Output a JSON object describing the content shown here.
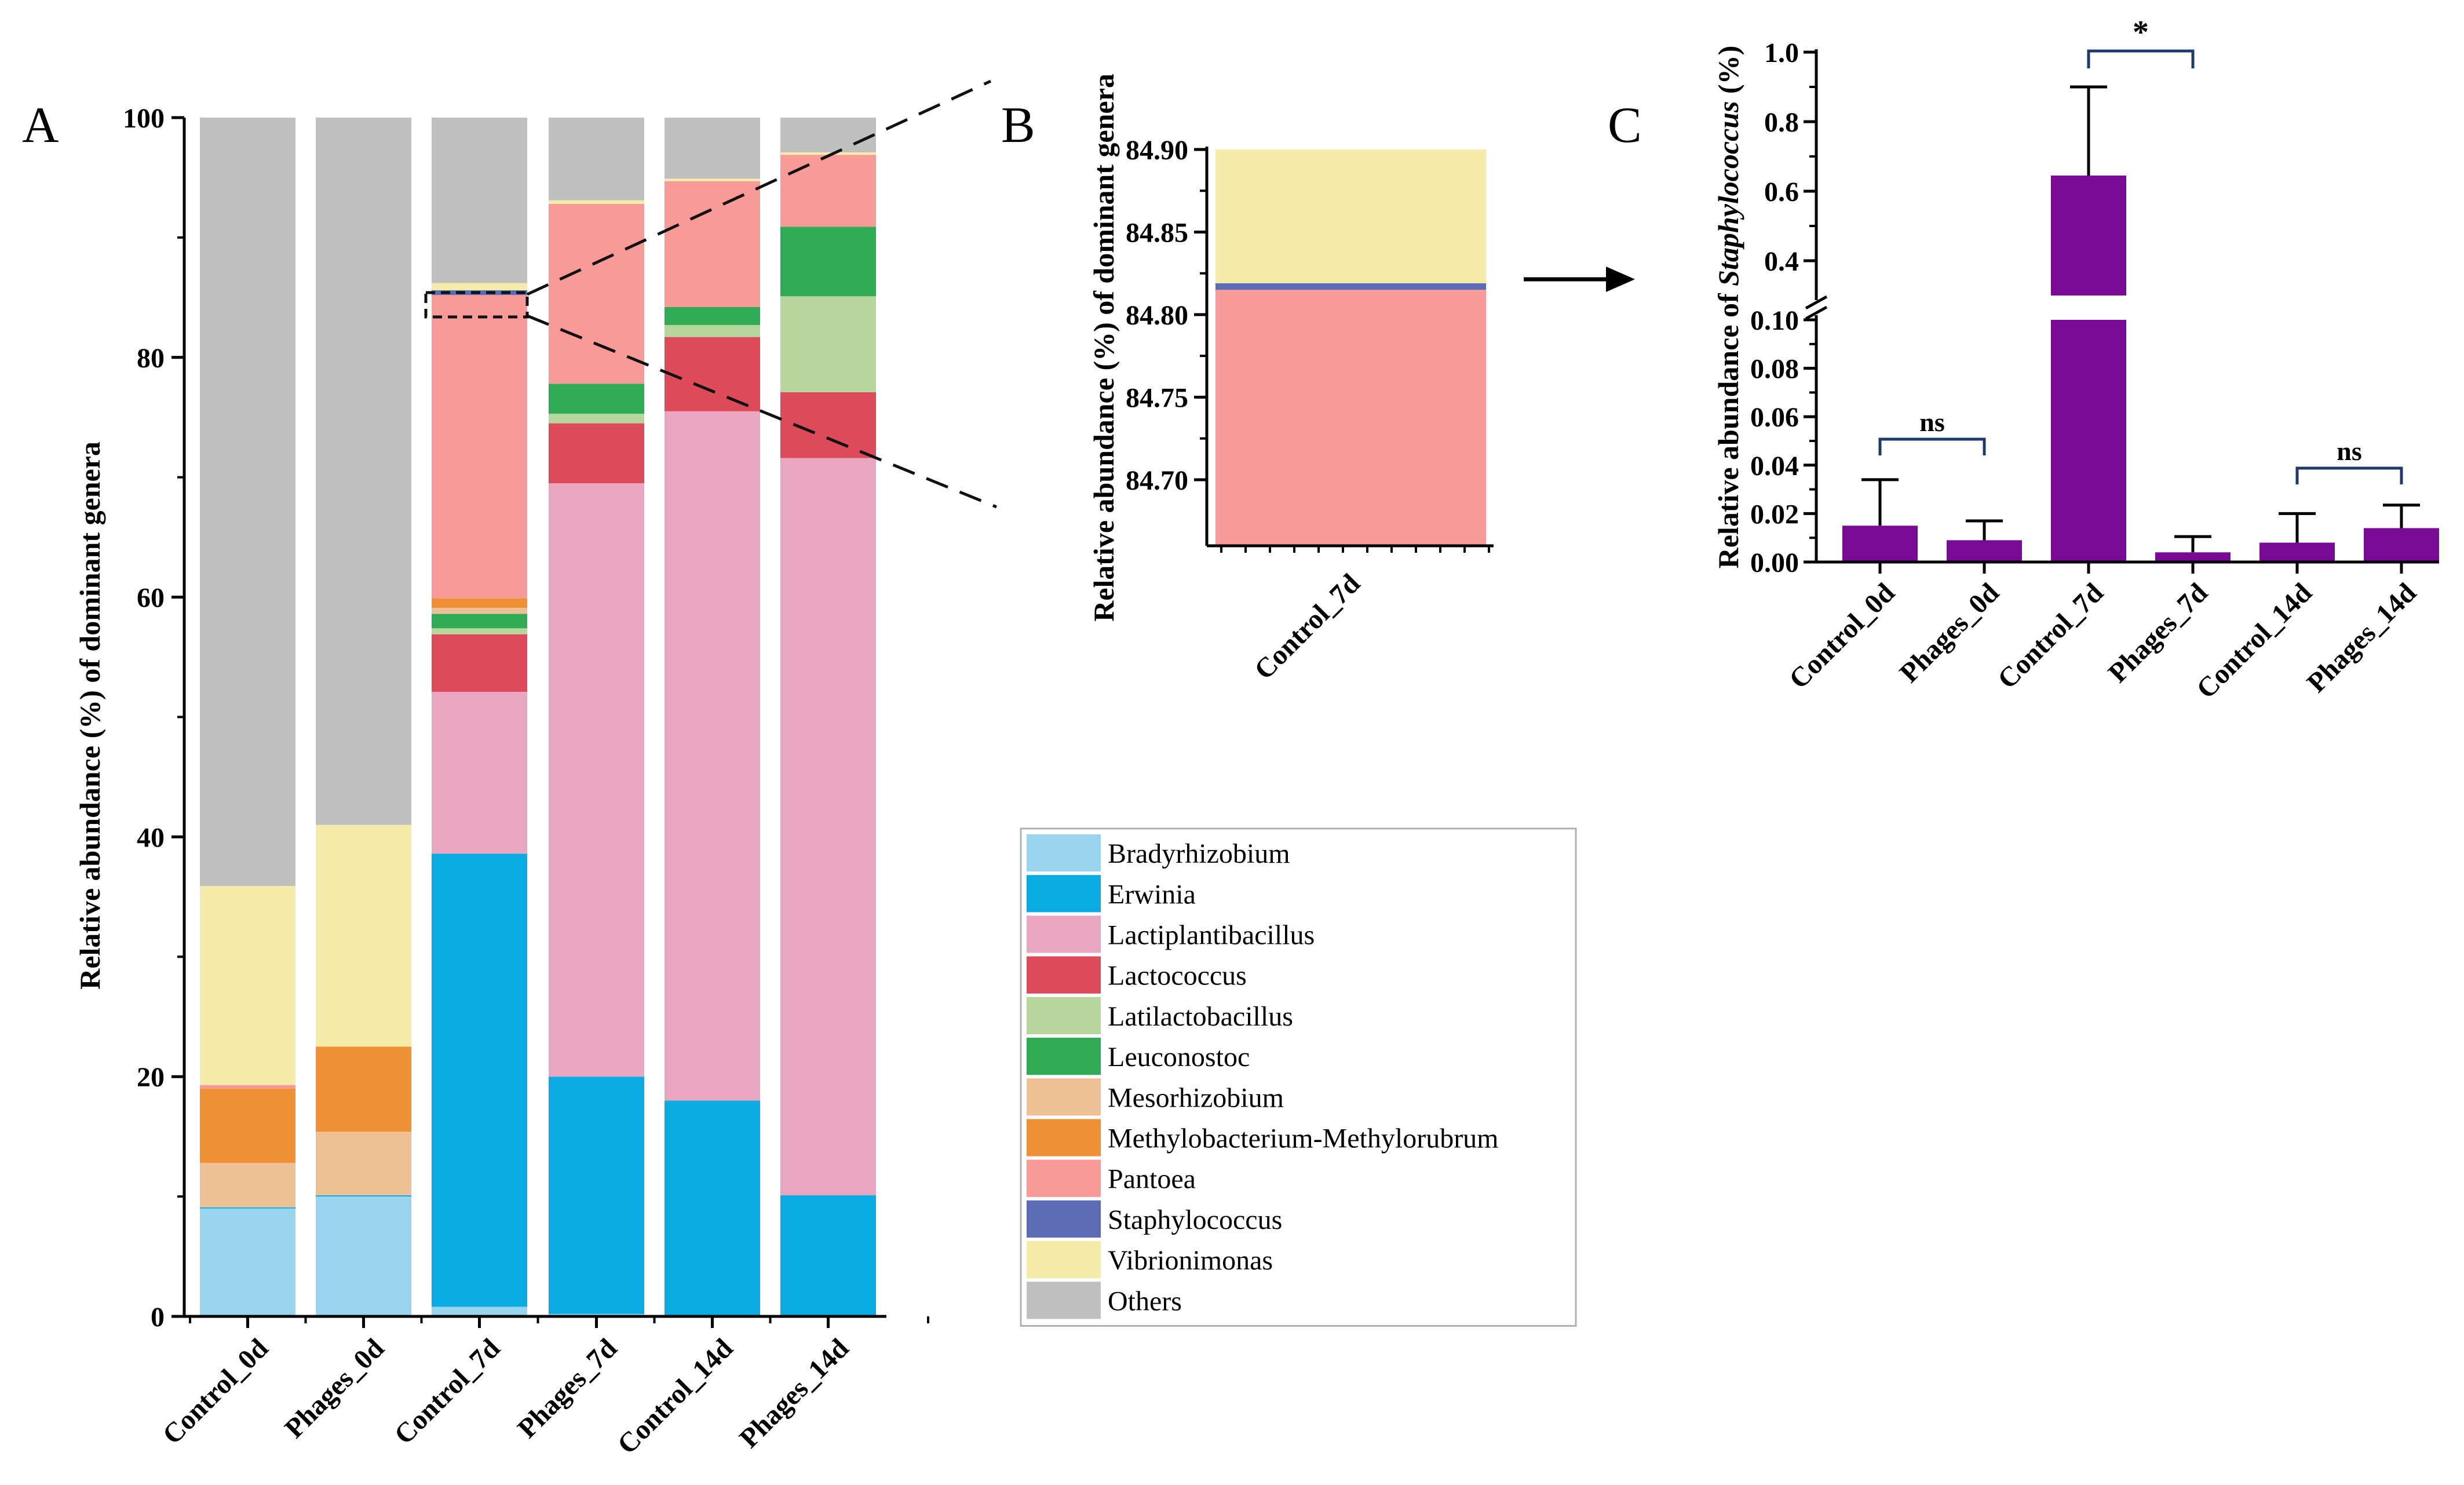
{
  "chart_data": [
    {
      "panel": "A",
      "type": "bar",
      "stacked": true,
      "title": "",
      "xlabel": "",
      "ylabel": "Relative abundance (%) of dominant genera",
      "ylim": [
        0,
        100
      ],
      "yticks": [
        "0",
        "20",
        "40",
        "60",
        "80",
        "100"
      ],
      "categories": [
        "Control_0d",
        "Phages_0d",
        "Control_7d",
        "Phages_7d",
        "Control_14d",
        "Phages_14d"
      ],
      "series": [
        {
          "name": "Bradyrhizobium",
          "color": "#9ad5ef",
          "values": [
            9.0,
            10.0,
            0.8,
            0.2,
            0.1,
            0.1
          ]
        },
        {
          "name": "Erwinia",
          "color": "#09abe2",
          "values": [
            0.1,
            0.1,
            37.8,
            19.8,
            17.9,
            10.0
          ]
        },
        {
          "name": "Lactiplantibacillus",
          "color": "#e8a6c1",
          "values": [
            0,
            0,
            13.5,
            49.5,
            57.5,
            61.5
          ]
        },
        {
          "name": "Lactococcus",
          "color": "#dd4b5a",
          "values": [
            0,
            0,
            4.8,
            5.0,
            6.2,
            5.5
          ]
        },
        {
          "name": "Latilactobacillus",
          "color": "#b6d69e",
          "values": [
            0,
            0,
            0.5,
            0.8,
            1.0,
            8.0
          ]
        },
        {
          "name": "Leuconostoc",
          "color": "#2faa55",
          "values": [
            0,
            0,
            1.2,
            2.5,
            1.5,
            5.8
          ]
        },
        {
          "name": "Mesorhizobium",
          "color": "#eec096",
          "values": [
            3.7,
            5.3,
            0.5,
            0,
            0,
            0
          ]
        },
        {
          "name": "Methylobacterium-Methylorubrum",
          "color": "#ef9035",
          "values": [
            6.2,
            7.1,
            0.8,
            0,
            0,
            0
          ]
        },
        {
          "name": "Pantoea",
          "color": "#f89a97",
          "values": [
            0.3,
            0,
            25.3,
            15.0,
            10.5,
            6.0
          ]
        },
        {
          "name": "Staphylococcus",
          "color": "#5c6cb4",
          "values": [
            0,
            0,
            0.4,
            0,
            0,
            0
          ]
        },
        {
          "name": "Vibrionimonas",
          "color": "#f4eca8",
          "values": [
            16.6,
            18.5,
            0.6,
            0.3,
            0.2,
            0.2
          ]
        },
        {
          "name": "Others",
          "color": "#c0c0c0",
          "values": [
            64.1,
            59.0,
            13.8,
            6.9,
            5.1,
            2.9
          ]
        }
      ],
      "panel_label": "A"
    },
    {
      "panel": "B",
      "type": "bar",
      "stacked": true,
      "title": "",
      "xlabel": "",
      "ylabel": "Relative abundance (%) of dominant genera",
      "ylim": [
        84.66,
        84.9
      ],
      "yticks": [
        "84.70",
        "84.75",
        "84.80",
        "84.85",
        "84.90"
      ],
      "categories": [
        "Control_7d"
      ],
      "bands": [
        {
          "name": "Pantoea",
          "color": "#f89a97",
          "from": 84.66,
          "to": 84.815
        },
        {
          "name": "Staphylococcus",
          "color": "#5c6cb4",
          "from": 84.815,
          "to": 84.819
        },
        {
          "name": "Vibrionimonas",
          "color": "#f4eca8",
          "from": 84.819,
          "to": 84.9
        }
      ],
      "panel_label": "B"
    },
    {
      "panel": "C",
      "type": "bar",
      "title": "",
      "xlabel": "",
      "ylabel_prefix": "Relative abundance of ",
      "ylabel_italic": "Staphylococcus",
      "ylabel_suffix": " (%)",
      "broken_axis": true,
      "ylim_lower": [
        0,
        0.1
      ],
      "ylim_upper": [
        0.3,
        1.0
      ],
      "yticks_lower": [
        "0.00",
        "0.02",
        "0.04",
        "0.06",
        "0.08",
        "0.10"
      ],
      "yticks_upper": [
        "0.4",
        "0.6",
        "0.8",
        "1.0"
      ],
      "categories": [
        "Control_0d",
        "Phages_0d",
        "Control_7d",
        "Phages_7d",
        "Control_14d",
        "Phages_14d"
      ],
      "values": [
        0.015,
        0.009,
        0.645,
        0.004,
        0.008,
        0.014
      ],
      "errors": [
        0.019,
        0.008,
        0.255,
        0.0065,
        0.012,
        0.0095
      ],
      "bar_color": "#780a96",
      "significance": [
        {
          "pair": [
            0,
            1
          ],
          "label": "ns"
        },
        {
          "pair": [
            2,
            3
          ],
          "label": "*"
        },
        {
          "pair": [
            4,
            5
          ],
          "label": "ns"
        }
      ],
      "panel_label": "C"
    }
  ]
}
